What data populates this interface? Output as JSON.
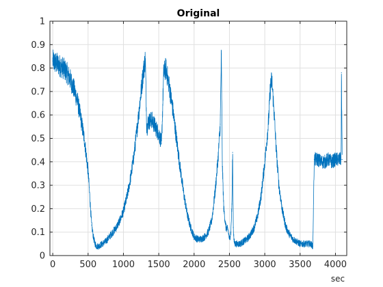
{
  "chart_data": {
    "type": "line",
    "title": "Original",
    "xlabel": "sec",
    "ylabel": "",
    "xlim": [
      -40,
      4160
    ],
    "ylim": [
      0,
      1
    ],
    "x_ticks": [
      0,
      500,
      1000,
      1500,
      2000,
      2500,
      3000,
      3500,
      4000
    ],
    "x_tick_labels": [
      "0",
      "500",
      "1000",
      "1500",
      "2000",
      "2500",
      "3000",
      "3500",
      "4000"
    ],
    "y_ticks": [
      0,
      0.1,
      0.2,
      0.3,
      0.4,
      0.5,
      0.6,
      0.7,
      0.8,
      0.9,
      1
    ],
    "y_tick_labels": [
      "0",
      "0.1",
      "0.2",
      "0.3",
      "0.4",
      "0.5",
      "0.6",
      "0.7",
      "0.8",
      "0.9",
      "1"
    ],
    "grid": true,
    "series_color": "#0072BD",
    "series": [
      {
        "name": "",
        "x": [
          0,
          50,
          100,
          150,
          200,
          250,
          300,
          350,
          400,
          450,
          500,
          520,
          550,
          580,
          600,
          620,
          650,
          700,
          750,
          800,
          850,
          900,
          950,
          1000,
          1050,
          1100,
          1150,
          1200,
          1250,
          1280,
          1310,
          1330,
          1350,
          1400,
          1450,
          1500,
          1540,
          1570,
          1600,
          1650,
          1700,
          1750,
          1800,
          1850,
          1900,
          1950,
          2000,
          2050,
          2100,
          2150,
          2200,
          2250,
          2300,
          2340,
          2370,
          2385,
          2400,
          2420,
          2450,
          2480,
          2500,
          2520,
          2535,
          2545,
          2555,
          2565,
          2580,
          2600,
          2650,
          2700,
          2750,
          2800,
          2850,
          2900,
          2950,
          3000,
          3050,
          3080,
          3100,
          3130,
          3160,
          3200,
          3250,
          3300,
          3350,
          3400,
          3450,
          3500,
          3550,
          3600,
          3650,
          3680,
          3700,
          3750,
          3800,
          3850,
          3900,
          3950,
          4000,
          4050,
          4080,
          4085,
          4095
        ],
        "y": [
          0.83,
          0.82,
          0.81,
          0.8,
          0.78,
          0.75,
          0.71,
          0.66,
          0.58,
          0.49,
          0.36,
          0.27,
          0.13,
          0.07,
          0.05,
          0.04,
          0.04,
          0.05,
          0.06,
          0.08,
          0.1,
          0.12,
          0.15,
          0.19,
          0.25,
          0.33,
          0.43,
          0.56,
          0.7,
          0.78,
          0.84,
          0.54,
          0.57,
          0.58,
          0.55,
          0.52,
          0.48,
          0.78,
          0.8,
          0.72,
          0.62,
          0.5,
          0.38,
          0.27,
          0.18,
          0.12,
          0.08,
          0.07,
          0.07,
          0.08,
          0.1,
          0.15,
          0.28,
          0.42,
          0.56,
          0.86,
          0.38,
          0.2,
          0.12,
          0.11,
          0.07,
          0.1,
          0.22,
          0.44,
          0.12,
          0.06,
          0.05,
          0.05,
          0.05,
          0.06,
          0.07,
          0.09,
          0.12,
          0.17,
          0.26,
          0.4,
          0.56,
          0.72,
          0.75,
          0.62,
          0.46,
          0.3,
          0.19,
          0.12,
          0.09,
          0.07,
          0.06,
          0.05,
          0.05,
          0.05,
          0.05,
          0.04,
          0.41,
          0.41,
          0.4,
          0.4,
          0.41,
          0.4,
          0.41,
          0.41,
          0.41,
          0.78,
          0.41
        ]
      }
    ]
  }
}
